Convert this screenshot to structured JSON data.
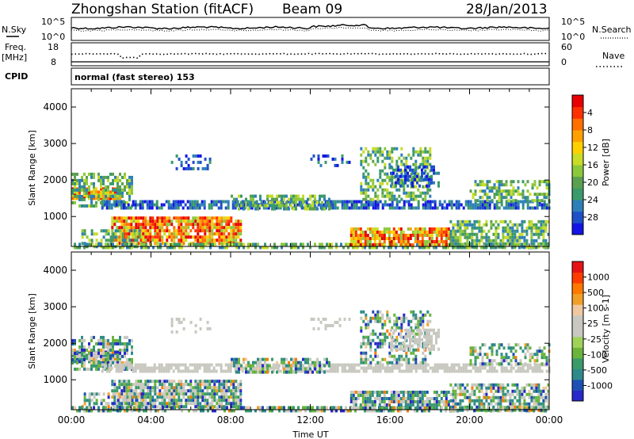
{
  "header": {
    "station": "Zhongshan Station (fitACF)",
    "beam": "Beam 09",
    "date": "28/Jan/2013"
  },
  "noise_panel": {
    "left_label": "N.Sky",
    "left_ticks": [
      "10^5",
      "10^0"
    ],
    "right_label": "N.Search",
    "right_ticks": [
      "10^5",
      "10^0"
    ]
  },
  "freq_panel": {
    "left_label_1": "Freq.",
    "left_label_2": "[MHz]",
    "left_ticks": [
      "18",
      "8"
    ],
    "right_label": "Nave",
    "right_ticks": [
      "60",
      "0"
    ]
  },
  "cpid": {
    "label": "CPID",
    "value": "normal (fast stereo) 153"
  },
  "chart_data": [
    {
      "type": "heatmap",
      "title": "Power",
      "ylabel": "Slant Range [km]",
      "ylim": [
        180,
        4500
      ],
      "yticks": [
        "1000",
        "2000",
        "3000",
        "4000"
      ],
      "xlim": [
        "00:00",
        "24:00"
      ],
      "colorbar": {
        "label": "Power [dB]",
        "ticks": [
          "4",
          "8",
          "12",
          "16",
          "20",
          "24",
          "28"
        ],
        "colors": [
          "#1414e6",
          "#1e50c8",
          "#2e7fb8",
          "#3a9a6a",
          "#5aa050",
          "#8cc83c",
          "#c8dc28",
          "#ffd000",
          "#ffa000",
          "#ff6e00",
          "#ff3000",
          "#e60000"
        ]
      }
    },
    {
      "type": "heatmap",
      "title": "Velocity",
      "ylabel": "Slant Range [km]",
      "ylim": [
        180,
        4500
      ],
      "yticks": [
        "1000",
        "2000",
        "3000",
        "4000"
      ],
      "xlim": [
        "00:00",
        "24:00"
      ],
      "xlabel": "Time UT",
      "xticks": [
        "00:00",
        "04:00",
        "08:00",
        "12:00",
        "16:00",
        "20:00",
        "00:00"
      ],
      "colorbar": {
        "label": "Velocity [m s-1]",
        "ticks": [
          "1000",
          "500",
          "100",
          "25",
          "-25",
          "-100",
          "-500",
          "-1000"
        ],
        "colors": [
          "#2828c8",
          "#1e50b4",
          "#2e8a8a",
          "#3a9a6a",
          "#6ab43c",
          "#a0d25a",
          "#c8c8c0",
          "#c8c8c0",
          "#f0c8a0",
          "#f0a028",
          "#ff7800",
          "#ff3c00",
          "#e61414"
        ]
      }
    }
  ]
}
